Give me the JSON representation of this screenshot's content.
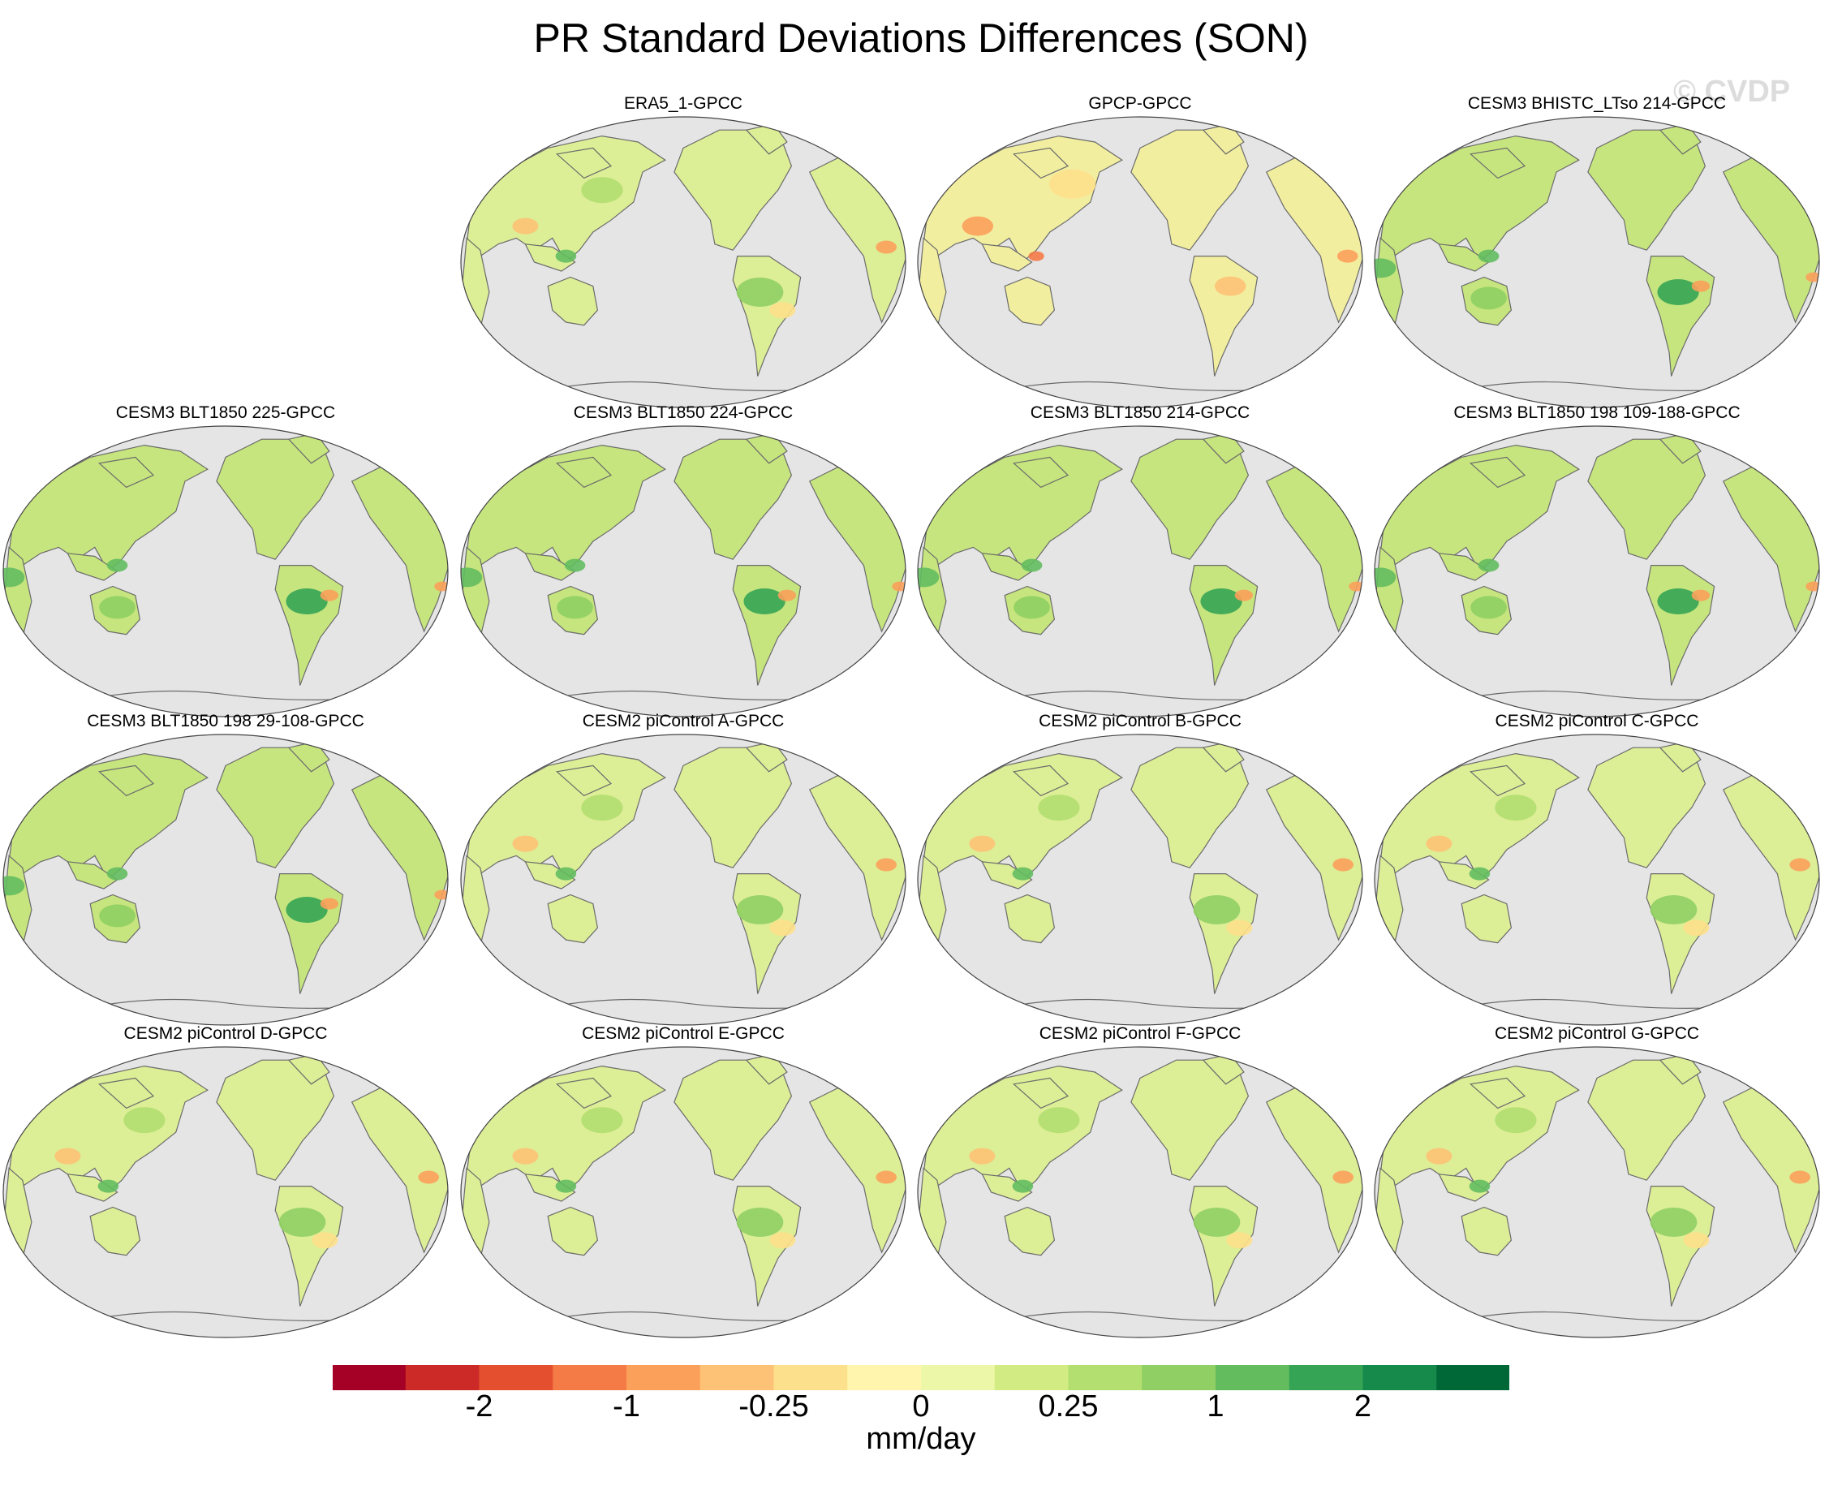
{
  "title": "PR Standard Deviations Differences (SON)",
  "watermark": "© CVDP",
  "panels": [
    {
      "label": "ERA5_1-GPCC",
      "style": "mixed"
    },
    {
      "label": "GPCP-GPCC",
      "style": "warm"
    },
    {
      "label": "CESM3 BHISTC_LTso 214-GPCC",
      "style": "wet"
    },
    {
      "label": "CESM3 BLT1850 225-GPCC",
      "style": "wet"
    },
    {
      "label": "CESM3 BLT1850 224-GPCC",
      "style": "wet"
    },
    {
      "label": "CESM3 BLT1850 214-GPCC",
      "style": "wet"
    },
    {
      "label": "CESM3 BLT1850 198 109-188-GPCC",
      "style": "wet"
    },
    {
      "label": "CESM3 BLT1850 198 29-108-GPCC",
      "style": "wet"
    },
    {
      "label": "CESM2 piControl A-GPCC",
      "style": "mixed"
    },
    {
      "label": "CESM2 piControl B-GPCC",
      "style": "mixed"
    },
    {
      "label": "CESM2 piControl C-GPCC",
      "style": "mixed"
    },
    {
      "label": "CESM2 piControl D-GPCC",
      "style": "mixed"
    },
    {
      "label": "CESM2 piControl E-GPCC",
      "style": "mixed"
    },
    {
      "label": "CESM2 piControl F-GPCC",
      "style": "mixed"
    },
    {
      "label": "CESM2 piControl G-GPCC",
      "style": "mixed"
    }
  ],
  "colorbar": {
    "colors": [
      "#a50026",
      "#cc2a27",
      "#e4502f",
      "#f47a46",
      "#fba05b",
      "#fdc275",
      "#fde08b",
      "#fff5ac",
      "#edf7a8",
      "#d2ec83",
      "#b3de70",
      "#8fcf63",
      "#63bd5f",
      "#35a455",
      "#168a4b",
      "#006837"
    ],
    "tick_labels": [
      "-2",
      "-1",
      "-0.25",
      "0",
      "0.25",
      "1",
      "2"
    ],
    "tick_boundaries": [
      2,
      4,
      6,
      8,
      10,
      12,
      14
    ],
    "units": "mm/day"
  }
}
